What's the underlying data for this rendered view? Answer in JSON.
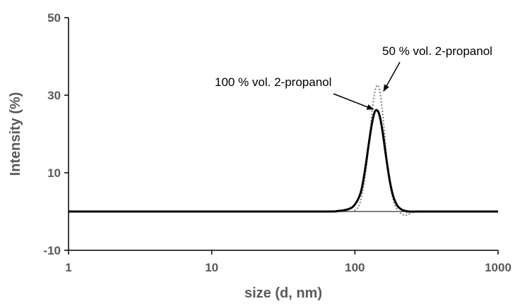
{
  "chart_data": {
    "type": "line",
    "xscale": "log",
    "xlim": [
      1,
      1000
    ],
    "ylim": [
      -10,
      50
    ],
    "xlabel": "size (d, nm)",
    "ylabel": "Intensity (%)",
    "x_ticks": [
      1,
      10,
      100,
      1000
    ],
    "x_tick_labels": [
      "1",
      "10",
      "100",
      "1000"
    ],
    "y_ticks": [
      -10,
      10,
      30,
      50
    ],
    "y_tick_labels": [
      "-10",
      "10",
      "30",
      "50"
    ],
    "grid": false,
    "legend": "none",
    "series": [
      {
        "name": "100 % vol. 2-propanol",
        "style": "solid",
        "color": "#000000",
        "x": [
          1,
          10,
          60,
          75,
          90,
          100,
          110,
          118,
          125,
          132,
          138,
          144,
          150,
          157,
          165,
          175,
          185,
          198,
          215,
          240,
          270,
          300,
          1000
        ],
        "y": [
          0,
          0,
          0,
          0.1,
          0.6,
          1.8,
          5,
          11,
          17.5,
          23,
          25.8,
          26,
          24.2,
          20,
          14.2,
          8,
          4,
          1.5,
          0.4,
          0,
          0,
          0,
          0
        ]
      },
      {
        "name": "50 % vol. 2-propanol",
        "style": "dotted",
        "color": "#7f7f7f",
        "x": [
          1,
          10,
          60,
          90,
          100,
          108,
          115,
          122,
          128,
          134,
          140,
          145,
          150,
          156,
          163,
          170,
          180,
          195,
          210,
          225,
          240,
          260,
          1000
        ],
        "y": [
          0,
          0,
          0,
          0,
          0.3,
          2,
          6.5,
          13.5,
          21,
          28,
          31.8,
          32.5,
          30.5,
          25.5,
          18,
          11,
          4.8,
          0.8,
          -0.5,
          -1,
          -0.6,
          0,
          0
        ]
      }
    ],
    "annotations": [
      {
        "text": "100 % vol. 2-propanol",
        "points_to": "100 % vol. 2-propanol"
      },
      {
        "text": "50 % vol. 2-propanol",
        "points_to": "50 % vol. 2-propanol"
      }
    ]
  }
}
